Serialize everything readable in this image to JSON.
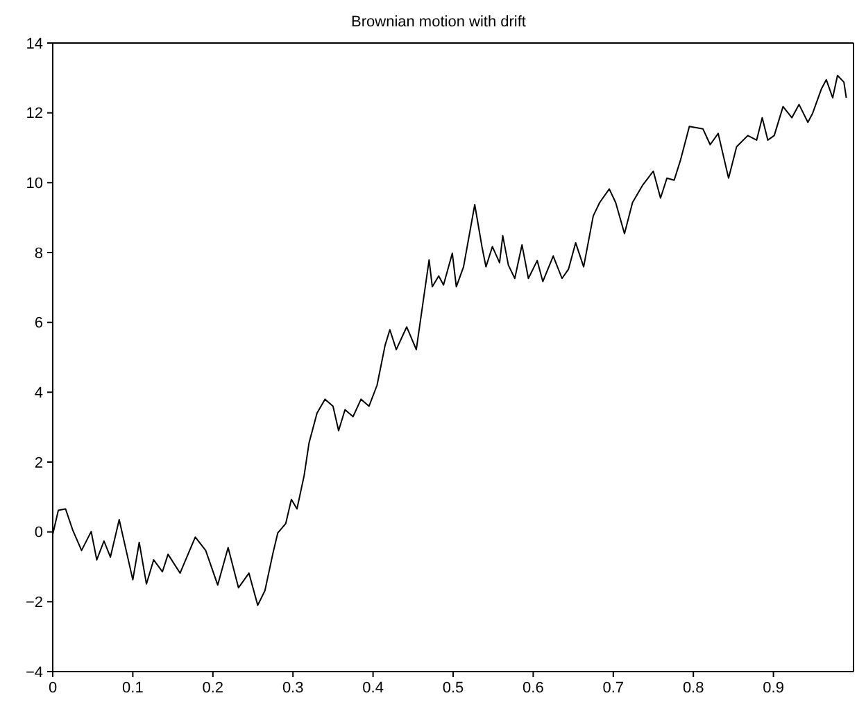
{
  "chart_data": {
    "type": "line",
    "title": "Brownian motion with drift",
    "xlim": [
      0,
      1
    ],
    "xticks": [
      0,
      0.1,
      0.2,
      0.3,
      0.4,
      0.5,
      0.6,
      0.7,
      0.8,
      0.9
    ],
    "ylim": [
      -4,
      14
    ],
    "yticks": [
      -4,
      -2,
      0,
      2,
      4,
      6,
      8,
      10,
      12,
      14
    ],
    "grid": false,
    "legend": false,
    "marker": "none",
    "line_style": "solid",
    "x": [
      0,
      0.007,
      0.016,
      0.025,
      0.036,
      0.048,
      0.055,
      0.064,
      0.072,
      0.083,
      0.1,
      0.108,
      0.117,
      0.126,
      0.137,
      0.144,
      0.159,
      0.178,
      0.191,
      0.206,
      0.219,
      0.232,
      0.245,
      0.256,
      0.265,
      0.275,
      0.281,
      0.291,
      0.298,
      0.305,
      0.314,
      0.32,
      0.33,
      0.34,
      0.35,
      0.357,
      0.365,
      0.375,
      0.385,
      0.395,
      0.405,
      0.415,
      0.421,
      0.429,
      0.442,
      0.454,
      0.47,
      0.474,
      0.482,
      0.488,
      0.499,
      0.504,
      0.513,
      0.527,
      0.536,
      0.541,
      0.549,
      0.558,
      0.562,
      0.569,
      0.577,
      0.586,
      0.594,
      0.605,
      0.612,
      0.625,
      0.636,
      0.644,
      0.653,
      0.663,
      0.675,
      0.683,
      0.695,
      0.703,
      0.714,
      0.724,
      0.737,
      0.75,
      0.759,
      0.767,
      0.776,
      0.784,
      0.792,
      0.795,
      0.812,
      0.821,
      0.831,
      0.844,
      0.854,
      0.868,
      0.879,
      0.886,
      0.893,
      0.901,
      0.912,
      0.923,
      0.932,
      0.943,
      0.949,
      0.96,
      0.966,
      0.974,
      0.98,
      0.988,
      0.991
    ],
    "series": [
      {
        "color": "#000000",
        "values": [
          -0.07,
          0.62,
          0.66,
          0.05,
          -0.53,
          0.01,
          -0.8,
          -0.26,
          -0.72,
          0.35,
          -1.37,
          -0.3,
          -1.49,
          -0.8,
          -1.14,
          -0.64,
          -1.18,
          -0.15,
          -0.53,
          -1.52,
          -0.45,
          -1.6,
          -1.18,
          -2.1,
          -1.68,
          -0.61,
          -0.03,
          0.24,
          0.93,
          0.66,
          1.62,
          2.54,
          3.4,
          3.8,
          3.6,
          2.9,
          3.5,
          3.3,
          3.8,
          3.6,
          4.2,
          5.34,
          5.79,
          5.22,
          5.87,
          5.22,
          7.79,
          7.02,
          7.33,
          7.07,
          7.98,
          7.02,
          7.59,
          9.37,
          8.17,
          7.59,
          8.17,
          7.71,
          8.48,
          7.64,
          7.26,
          8.22,
          7.26,
          7.77,
          7.17,
          7.9,
          7.26,
          7.52,
          8.28,
          7.59,
          9.05,
          9.43,
          9.82,
          9.43,
          8.54,
          9.43,
          9.94,
          10.33,
          9.56,
          10.13,
          10.07,
          10.65,
          11.35,
          11.61,
          11.54,
          11.09,
          11.41,
          10.13,
          11.03,
          11.35,
          11.22,
          11.86,
          11.22,
          11.35,
          12.18,
          11.86,
          12.24,
          11.73,
          11.99,
          12.69,
          12.95,
          12.43,
          13.07,
          12.88,
          12.43
        ]
      }
    ]
  }
}
